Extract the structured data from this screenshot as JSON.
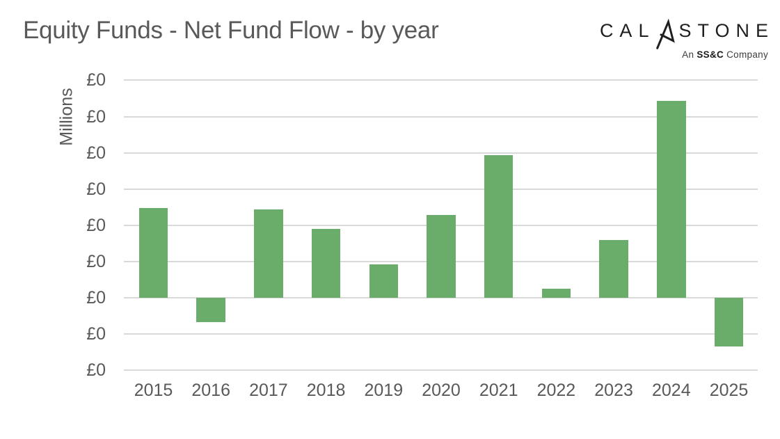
{
  "header": {
    "title": "Equity Funds - Net Fund Flow - by year"
  },
  "logo": {
    "brand_left": "CAL",
    "brand_right": "STONE",
    "glyph": "calastone-arrow-a",
    "tagline_an": "An ",
    "tagline_ssc": "SS&C",
    "tagline_company": " Company"
  },
  "chart_data": {
    "type": "bar",
    "title": "Equity Funds - Net Fund Flow - by year",
    "categories": [
      "2015",
      "2016",
      "2017",
      "2018",
      "2019",
      "2020",
      "2021",
      "2022",
      "2023",
      "2024",
      "2025"
    ],
    "values": [
      2.47,
      -0.67,
      2.43,
      1.9,
      0.92,
      2.28,
      3.93,
      0.25,
      1.59,
      5.43,
      -1.34
    ],
    "value_units": "gridline units (every y-axis tick label displays £0)",
    "xlabel": "",
    "ylabel": "Millions",
    "ylim": [
      -2,
      6
    ],
    "gridline_step": 1,
    "y_tick_labels": [
      "£0",
      "£0",
      "£0",
      "£0",
      "£0",
      "£0",
      "£0",
      "£0",
      "£0"
    ],
    "grid": "horizontal",
    "legend": "none",
    "bar_color": "#6AAC6A",
    "gridline_color": "#D9D9D9",
    "text_color": "#595959",
    "title_color": "#595959"
  }
}
